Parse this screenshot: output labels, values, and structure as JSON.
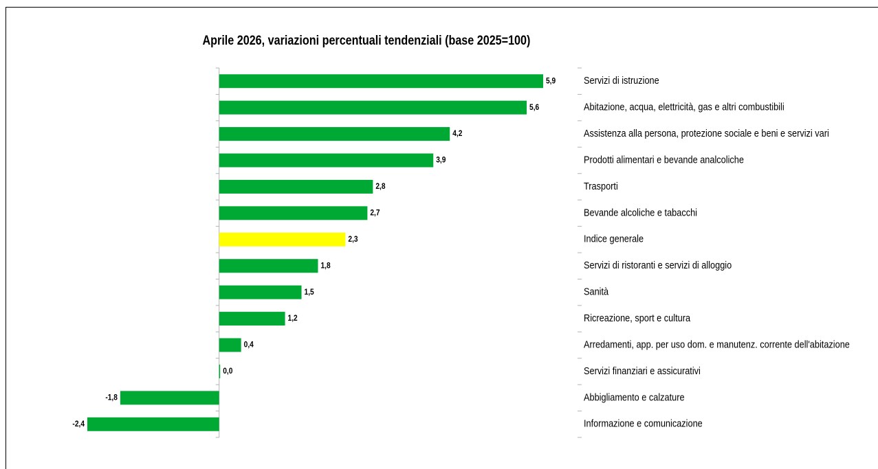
{
  "chart_data": {
    "type": "bar",
    "orientation": "horizontal",
    "title": "Aprile 2026, variazioni percentuali tendenziali (base 2025=100)",
    "categories": [
      "Servizi di istruzione",
      "Abitazione, acqua, elettricità, gas e altri combustibili",
      "Assistenza alla persona, protezione sociale e beni e servizi vari",
      "Prodotti alimentari e bevande analcoliche",
      "Trasporti",
      "Bevande alcoliche e tabacchi",
      "Indice generale",
      "Servizi di ristoranti e servizi di alloggio",
      "Sanità",
      "Ricreazione, sport e cultura",
      "Arredamenti, app. per uso dom. e manutenz. corrente dell'abitazione",
      "Servizi finanziari e assicurativi",
      "Abbigliamento e calzature",
      "Informazione e comunicazione"
    ],
    "values": [
      5.9,
      5.6,
      4.2,
      3.9,
      2.8,
      2.7,
      2.3,
      1.8,
      1.5,
      1.2,
      0.4,
      0.0,
      -1.8,
      -2.4
    ],
    "value_labels": [
      "5,9",
      "5,6",
      "4,2",
      "3,9",
      "2,8",
      "2,7",
      "2,3",
      "1,8",
      "1,5",
      "1,2",
      "0,4",
      "0,0",
      "-1,8",
      "-2,4"
    ],
    "colors": [
      "#00a933",
      "#00a933",
      "#00a933",
      "#00a933",
      "#00a933",
      "#00a933",
      "#ffff00",
      "#00a933",
      "#00a933",
      "#00a933",
      "#00a933",
      "#00a933",
      "#00a933",
      "#00a933"
    ],
    "xlim": [
      -2.4,
      5.9
    ]
  }
}
